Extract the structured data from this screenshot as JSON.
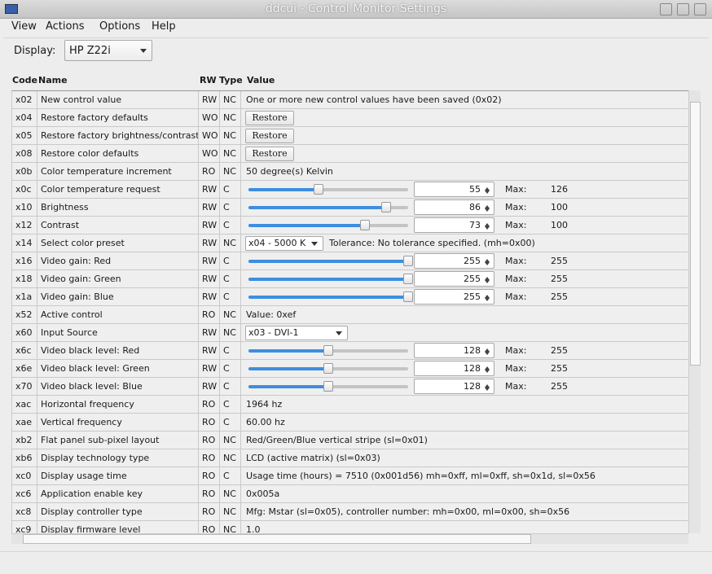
{
  "window": {
    "title": "ddcui - Control Monitor Settings"
  },
  "menu": [
    "View",
    "Actions",
    "Options",
    "Help"
  ],
  "display": {
    "label": "Display:",
    "value": "HP Z22i"
  },
  "table": {
    "headers": [
      "Code",
      "Name",
      "RW",
      "Type",
      "Value"
    ],
    "rows": [
      {
        "code": "x02",
        "name": "New control value",
        "rw": "RW",
        "type": "NC",
        "text": "One or more new control values have been saved (0x02)"
      },
      {
        "code": "x04",
        "name": "Restore factory defaults",
        "rw": "WO",
        "type": "NC",
        "button": "Restore"
      },
      {
        "code": "x05",
        "name": "Restore factory brightness/contrast",
        "rw": "WO",
        "type": "NC",
        "button": "Restore"
      },
      {
        "code": "x08",
        "name": "Restore color defaults",
        "rw": "WO",
        "type": "NC",
        "button": "Restore"
      },
      {
        "code": "x0b",
        "name": "Color temperature increment",
        "rw": "RO",
        "type": "NC",
        "text": "50 degree(s) Kelvin"
      },
      {
        "code": "x0c",
        "name": "Color temperature request",
        "rw": "RW",
        "type": "C",
        "value": 55,
        "max_label": "Max:",
        "max": 126
      },
      {
        "code": "x10",
        "name": "Brightness",
        "rw": "RW",
        "type": "C",
        "value": 86,
        "max_label": "Max:",
        "max": 100
      },
      {
        "code": "x12",
        "name": "Contrast",
        "rw": "RW",
        "type": "C",
        "value": 73,
        "max_label": "Max:",
        "max": 100
      },
      {
        "code": "x14",
        "name": "Select color preset",
        "rw": "RW",
        "type": "NC",
        "combo": "x04 - 5000 K",
        "text": "Tolerance: No tolerance specified. (mh=0x00)"
      },
      {
        "code": "x16",
        "name": "Video gain: Red",
        "rw": "RW",
        "type": "C",
        "value": 255,
        "max_label": "Max:",
        "max": 255
      },
      {
        "code": "x18",
        "name": "Video gain: Green",
        "rw": "RW",
        "type": "C",
        "value": 255,
        "max_label": "Max:",
        "max": 255
      },
      {
        "code": "x1a",
        "name": "Video gain: Blue",
        "rw": "RW",
        "type": "C",
        "value": 255,
        "max_label": "Max:",
        "max": 255
      },
      {
        "code": "x52",
        "name": "Active control",
        "rw": "RO",
        "type": "NC",
        "text": "Value: 0xef"
      },
      {
        "code": "x60",
        "name": "Input Source",
        "rw": "RW",
        "type": "NC",
        "combo": "x03 - DVI-1"
      },
      {
        "code": "x6c",
        "name": "Video black level: Red",
        "rw": "RW",
        "type": "C",
        "value": 128,
        "max_label": "Max:",
        "max": 255
      },
      {
        "code": "x6e",
        "name": "Video black level: Green",
        "rw": "RW",
        "type": "C",
        "value": 128,
        "max_label": "Max:",
        "max": 255
      },
      {
        "code": "x70",
        "name": "Video black level: Blue",
        "rw": "RW",
        "type": "C",
        "value": 128,
        "max_label": "Max:",
        "max": 255
      },
      {
        "code": "xac",
        "name": "Horizontal frequency",
        "rw": "RO",
        "type": "C",
        "text": "1964 hz"
      },
      {
        "code": "xae",
        "name": "Vertical frequency",
        "rw": "RO",
        "type": "C",
        "text": "60.00 hz"
      },
      {
        "code": "xb2",
        "name": "Flat panel sub-pixel layout",
        "rw": "RO",
        "type": "NC",
        "text": "Red/Green/Blue vertical stripe (sl=0x01)"
      },
      {
        "code": "xb6",
        "name": "Display technology type",
        "rw": "RO",
        "type": "NC",
        "text": "LCD (active matrix) (sl=0x03)"
      },
      {
        "code": "xc0",
        "name": "Display usage time",
        "rw": "RO",
        "type": "C",
        "text": "Usage time (hours) = 7510 (0x001d56) mh=0xff, ml=0xff, sh=0x1d, sl=0x56"
      },
      {
        "code": "xc6",
        "name": "Application enable key",
        "rw": "RO",
        "type": "NC",
        "text": "0x005a"
      },
      {
        "code": "xc8",
        "name": "Display controller type",
        "rw": "RO",
        "type": "NC",
        "text": "Mfg: Mstar (sl=0x05), controller number: mh=0x00, ml=0x00, sh=0x56"
      },
      {
        "code": "xc9",
        "name": "Display firmware level",
        "rw": "RO",
        "type": "NC",
        "text": "1.0"
      }
    ]
  }
}
